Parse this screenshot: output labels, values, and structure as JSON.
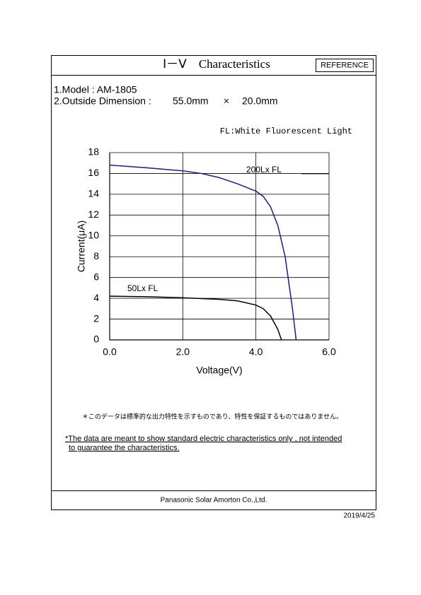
{
  "header": {
    "title": "Ⅰ－Ⅴ　Characteristics",
    "badge": "REFERENCE"
  },
  "specs": {
    "model": "1.Model : AM-1805",
    "dimension_label": "2.Outside Dimension :",
    "width": "55.0mm",
    "times": "×",
    "height": "20.0mm"
  },
  "legend_note": "FL:White Fluorescent Light",
  "chart_data": {
    "type": "line",
    "x_label": "Voltage(V)",
    "y_label": "Current(μA)",
    "xlim": [
      0,
      6
    ],
    "ylim": [
      0,
      18
    ],
    "xticks": [
      {
        "value": 0,
        "label": "0.0"
      },
      {
        "value": 2,
        "label": "2.0"
      },
      {
        "value": 4,
        "label": "4.0"
      },
      {
        "value": 6,
        "label": "6.0"
      }
    ],
    "yticks": [
      0,
      2,
      4,
      6,
      8,
      10,
      12,
      14,
      16,
      18
    ],
    "grid": true,
    "series": [
      {
        "name": "200Lx FL",
        "color": "#1c1c8a",
        "x": [
          0,
          1,
          2,
          2.5,
          3,
          3.5,
          4,
          4.2,
          4.4,
          4.6,
          4.8,
          4.9,
          5.0,
          5.1
        ],
        "values": [
          16.8,
          16.55,
          16.25,
          16.0,
          15.6,
          15.0,
          14.3,
          13.8,
          12.8,
          11.0,
          8.0,
          5.5,
          3.0,
          0
        ]
      },
      {
        "name": "50Lx  FL",
        "color": "#000000",
        "x": [
          0,
          1,
          2,
          3,
          3.5,
          4,
          4.2,
          4.4,
          4.6,
          4.7
        ],
        "values": [
          4.2,
          4.15,
          4.05,
          3.9,
          3.75,
          3.35,
          3.0,
          2.3,
          1.0,
          0
        ]
      }
    ]
  },
  "notes": {
    "japanese": "＊このデータは標準的な出力特性を示すものであり、特性を保証するものではありません。",
    "english_1": "*The data are meant to show standard electric characteristics only , not  intended",
    "english_2": "to guarantee the characteristics."
  },
  "footer": {
    "company": "Panasonic Solar  Amorton Co.,Ltd.",
    "date": "2019/4/25"
  }
}
